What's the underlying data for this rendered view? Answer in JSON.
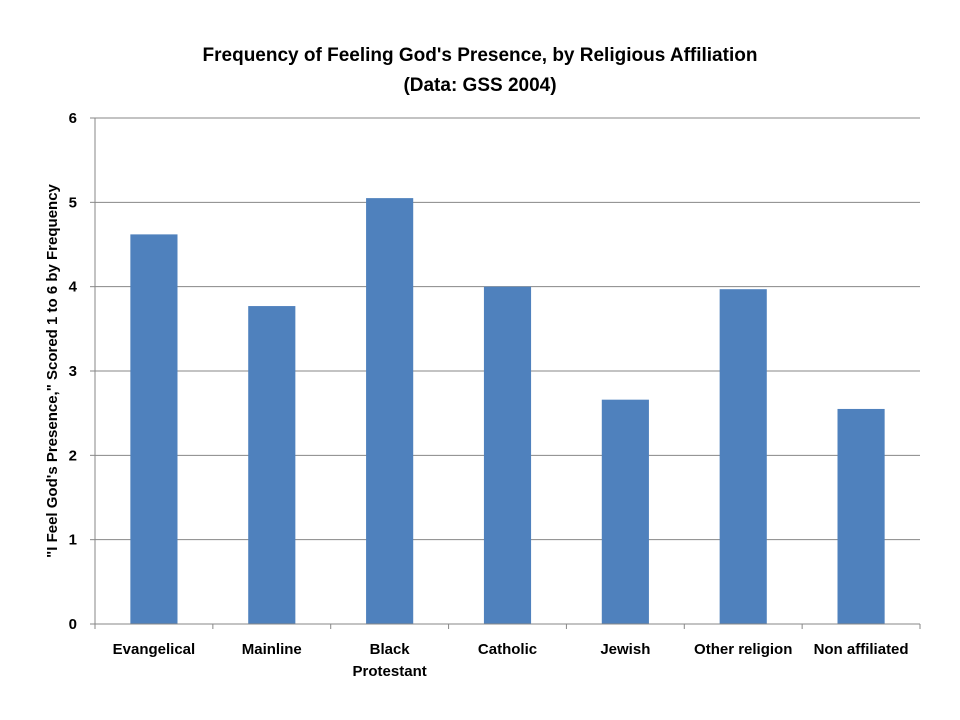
{
  "chart_data": {
    "type": "bar",
    "title": "Frequency of Feeling God's Presence, by Religious Affiliation",
    "subtitle": "(Data: GSS 2004)",
    "xlabel": "",
    "ylabel": "\"I Feel God's Presence,\" Scored 1 to 6 by Frequency",
    "categories": [
      [
        "Evangelical"
      ],
      [
        "Mainline"
      ],
      [
        "Black",
        "Protestant"
      ],
      [
        "Catholic"
      ],
      [
        "Jewish"
      ],
      [
        "Other religion"
      ],
      [
        "Non affiliated"
      ]
    ],
    "values": [
      4.62,
      3.77,
      5.05,
      4.0,
      2.66,
      3.97,
      2.55
    ],
    "ylim": [
      0,
      6
    ],
    "yticks": [
      "0",
      "1",
      "2",
      "3",
      "4",
      "5",
      "6"
    ],
    "grid": true,
    "legend": "none",
    "bar_color": "#4F81BD"
  }
}
